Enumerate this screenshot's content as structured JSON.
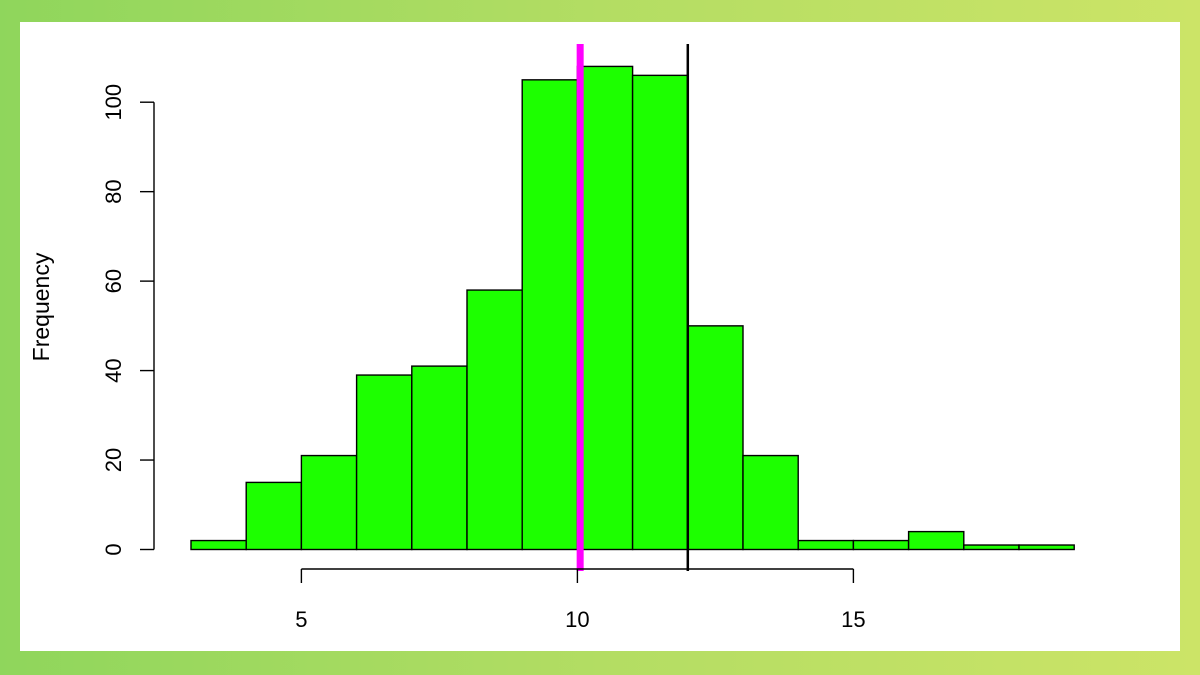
{
  "chart_data": {
    "type": "bar",
    "title": "",
    "xlabel": "",
    "ylabel": "Frequency",
    "bin_edges": [
      3,
      4,
      5,
      6,
      7,
      8,
      9,
      10,
      11,
      12,
      13,
      14,
      15,
      16,
      17,
      18,
      19
    ],
    "values": [
      2,
      15,
      21,
      39,
      41,
      58,
      105,
      108,
      106,
      50,
      21,
      2,
      2,
      4,
      1,
      1
    ],
    "x_ticks": [
      "5",
      "10",
      "15"
    ],
    "y_ticks": [
      "0",
      "20",
      "40",
      "60",
      "80",
      "100"
    ],
    "xlim": [
      3,
      19
    ],
    "ylim": [
      0,
      108
    ],
    "grid": false,
    "bar_color": "#1dff00",
    "reference_lines": [
      {
        "x": 10.05,
        "color": "#ff00ff"
      },
      {
        "x": 12,
        "color": "#000000"
      }
    ]
  }
}
